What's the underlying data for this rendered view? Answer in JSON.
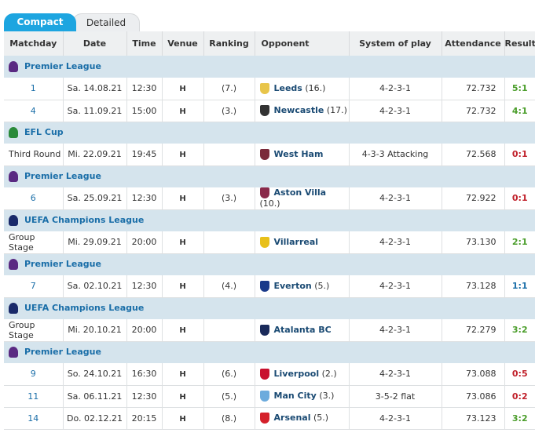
{
  "tabs": {
    "compact": "Compact",
    "detailed": "Detailed"
  },
  "headers": [
    "Matchday",
    "Date",
    "Time",
    "Venue",
    "Ranking",
    "Opponent",
    "System of play",
    "Attendance",
    "Result"
  ],
  "colors": {
    "win": "#4a9d2a",
    "loss": "#c0202a",
    "draw": "#1a6ea8",
    "active_tab": "#1da5e0",
    "competition_bg": "#d5e4ed"
  },
  "sections": [
    {
      "competition": "Premier League",
      "icon": "premier-league-icon",
      "icon_color": "#5a2a82",
      "rows": [
        {
          "matchday": "1",
          "date": "Sa. 14.08.21",
          "time": "12:30",
          "venue": "H",
          "ranking": "(7.)",
          "opponent": "Leeds",
          "opp_rank": "(16.)",
          "opp_icon": "leeds-crest-icon",
          "opp_color": "#e8c54a",
          "system": "4-2-3-1",
          "attendance": "72.732",
          "result": "5:1",
          "result_type": "win"
        },
        {
          "matchday": "4",
          "date": "Sa. 11.09.21",
          "time": "15:00",
          "venue": "H",
          "ranking": "(3.)",
          "opponent": "Newcastle",
          "opp_rank": "(17.)",
          "opp_icon": "newcastle-crest-icon",
          "opp_color": "#333333",
          "system": "4-2-3-1",
          "attendance": "72.732",
          "result": "4:1",
          "result_type": "win"
        }
      ]
    },
    {
      "competition": "EFL Cup",
      "icon": "efl-cup-icon",
      "icon_color": "#2a8a3a",
      "rows": [
        {
          "matchday": "Third Round",
          "date": "Mi. 22.09.21",
          "time": "19:45",
          "venue": "H",
          "ranking": "",
          "opponent": "West Ham",
          "opp_rank": "",
          "opp_icon": "west-ham-crest-icon",
          "opp_color": "#7a2a3a",
          "system": "4-3-3 Attacking",
          "attendance": "72.568",
          "result": "0:1",
          "result_type": "loss"
        }
      ]
    },
    {
      "competition": "Premier League",
      "icon": "premier-league-icon",
      "icon_color": "#5a2a82",
      "rows": [
        {
          "matchday": "6",
          "date": "Sa. 25.09.21",
          "time": "12:30",
          "venue": "H",
          "ranking": "(3.)",
          "opponent": "Aston Villa",
          "opp_rank": "(10.)",
          "opp_icon": "aston-villa-crest-icon",
          "opp_color": "#8a2a4a",
          "system": "4-2-3-1",
          "attendance": "72.922",
          "result": "0:1",
          "result_type": "loss"
        }
      ]
    },
    {
      "competition": "UEFA Champions League",
      "icon": "champions-league-icon",
      "icon_color": "#1a2a6a",
      "rows": [
        {
          "matchday": "Group Stage",
          "date": "Mi. 29.09.21",
          "time": "20:00",
          "venue": "H",
          "ranking": "",
          "opponent": "Villarreal",
          "opp_rank": "",
          "opp_icon": "villarreal-crest-icon",
          "opp_color": "#e8c01a",
          "system": "4-2-3-1",
          "attendance": "73.130",
          "result": "2:1",
          "result_type": "win"
        }
      ]
    },
    {
      "competition": "Premier League",
      "icon": "premier-league-icon",
      "icon_color": "#5a2a82",
      "rows": [
        {
          "matchday": "7",
          "date": "Sa. 02.10.21",
          "time": "12:30",
          "venue": "H",
          "ranking": "(4.)",
          "opponent": "Everton",
          "opp_rank": "(5.)",
          "opp_icon": "everton-crest-icon",
          "opp_color": "#1a3a8a",
          "system": "4-2-3-1",
          "attendance": "73.128",
          "result": "1:1",
          "result_type": "draw"
        }
      ]
    },
    {
      "competition": "UEFA Champions League",
      "icon": "champions-league-icon",
      "icon_color": "#1a2a6a",
      "rows": [
        {
          "matchday": "Group Stage",
          "date": "Mi. 20.10.21",
          "time": "20:00",
          "venue": "H",
          "ranking": "",
          "opponent": "Atalanta BC",
          "opp_rank": "",
          "opp_icon": "atalanta-crest-icon",
          "opp_color": "#1a2a5a",
          "system": "4-2-3-1",
          "attendance": "72.279",
          "result": "3:2",
          "result_type": "win"
        }
      ]
    },
    {
      "competition": "Premier League",
      "icon": "premier-league-icon",
      "icon_color": "#5a2a82",
      "rows": [
        {
          "matchday": "9",
          "date": "So. 24.10.21",
          "time": "16:30",
          "venue": "H",
          "ranking": "(6.)",
          "opponent": "Liverpool",
          "opp_rank": "(2.)",
          "opp_icon": "liverpool-crest-icon",
          "opp_color": "#c8102e",
          "system": "4-2-3-1",
          "attendance": "73.088",
          "result": "0:5",
          "result_type": "loss"
        },
        {
          "matchday": "11",
          "date": "Sa. 06.11.21",
          "time": "12:30",
          "venue": "H",
          "ranking": "(5.)",
          "opponent": "Man City",
          "opp_rank": "(3.)",
          "opp_icon": "man-city-crest-icon",
          "opp_color": "#6cabdd",
          "system": "3-5-2 flat",
          "attendance": "73.086",
          "result": "0:2",
          "result_type": "loss"
        },
        {
          "matchday": "14",
          "date": "Do. 02.12.21",
          "time": "20:15",
          "venue": "H",
          "ranking": "(8.)",
          "opponent": "Arsenal",
          "opp_rank": "(5.)",
          "opp_icon": "arsenal-crest-icon",
          "opp_color": "#d4202a",
          "system": "4-2-3-1",
          "attendance": "73.123",
          "result": "3:2",
          "result_type": "win"
        }
      ]
    }
  ]
}
